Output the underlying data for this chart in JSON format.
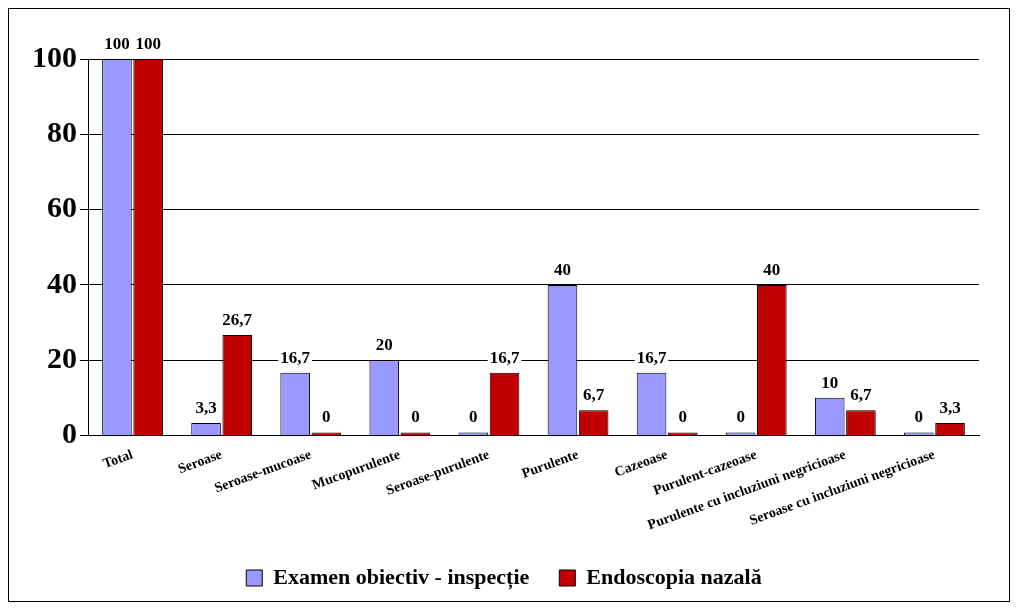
{
  "chart_data": {
    "type": "bar",
    "categories": [
      "Total",
      "Seroase",
      "Seroase-mucoase",
      "Mucopurulente",
      "Seroase-purulente",
      "Purulente",
      "Cazeoase",
      "Purulent-cazeoase",
      "Purulente cu incluziuni negricioase",
      "Seroase cu incluziuni negricioase"
    ],
    "series": [
      {
        "name": "Examen obiectiv - inspecție",
        "color": "#9999ff",
        "values": [
          100,
          3.3,
          16.7,
          20,
          0,
          40,
          16.7,
          0,
          10,
          0
        ],
        "value_labels": [
          "100",
          "3,3",
          "16,7",
          "20",
          "0",
          "40",
          "16,7",
          "0",
          "10",
          "0"
        ]
      },
      {
        "name": "Endoscopia nazală",
        "color": "#c00000",
        "values": [
          100,
          26.7,
          0,
          0,
          16.7,
          6.7,
          0,
          40,
          6.7,
          3.3
        ],
        "value_labels": [
          "100",
          "26,7",
          "0",
          "0",
          "16,7",
          "6,7",
          "0",
          "40",
          "6,7",
          "3,3"
        ]
      }
    ],
    "ylim": [
      0,
      100
    ],
    "yticks": [
      0,
      20,
      40,
      60,
      80,
      100
    ],
    "grid": "y",
    "legend": "bottom"
  }
}
